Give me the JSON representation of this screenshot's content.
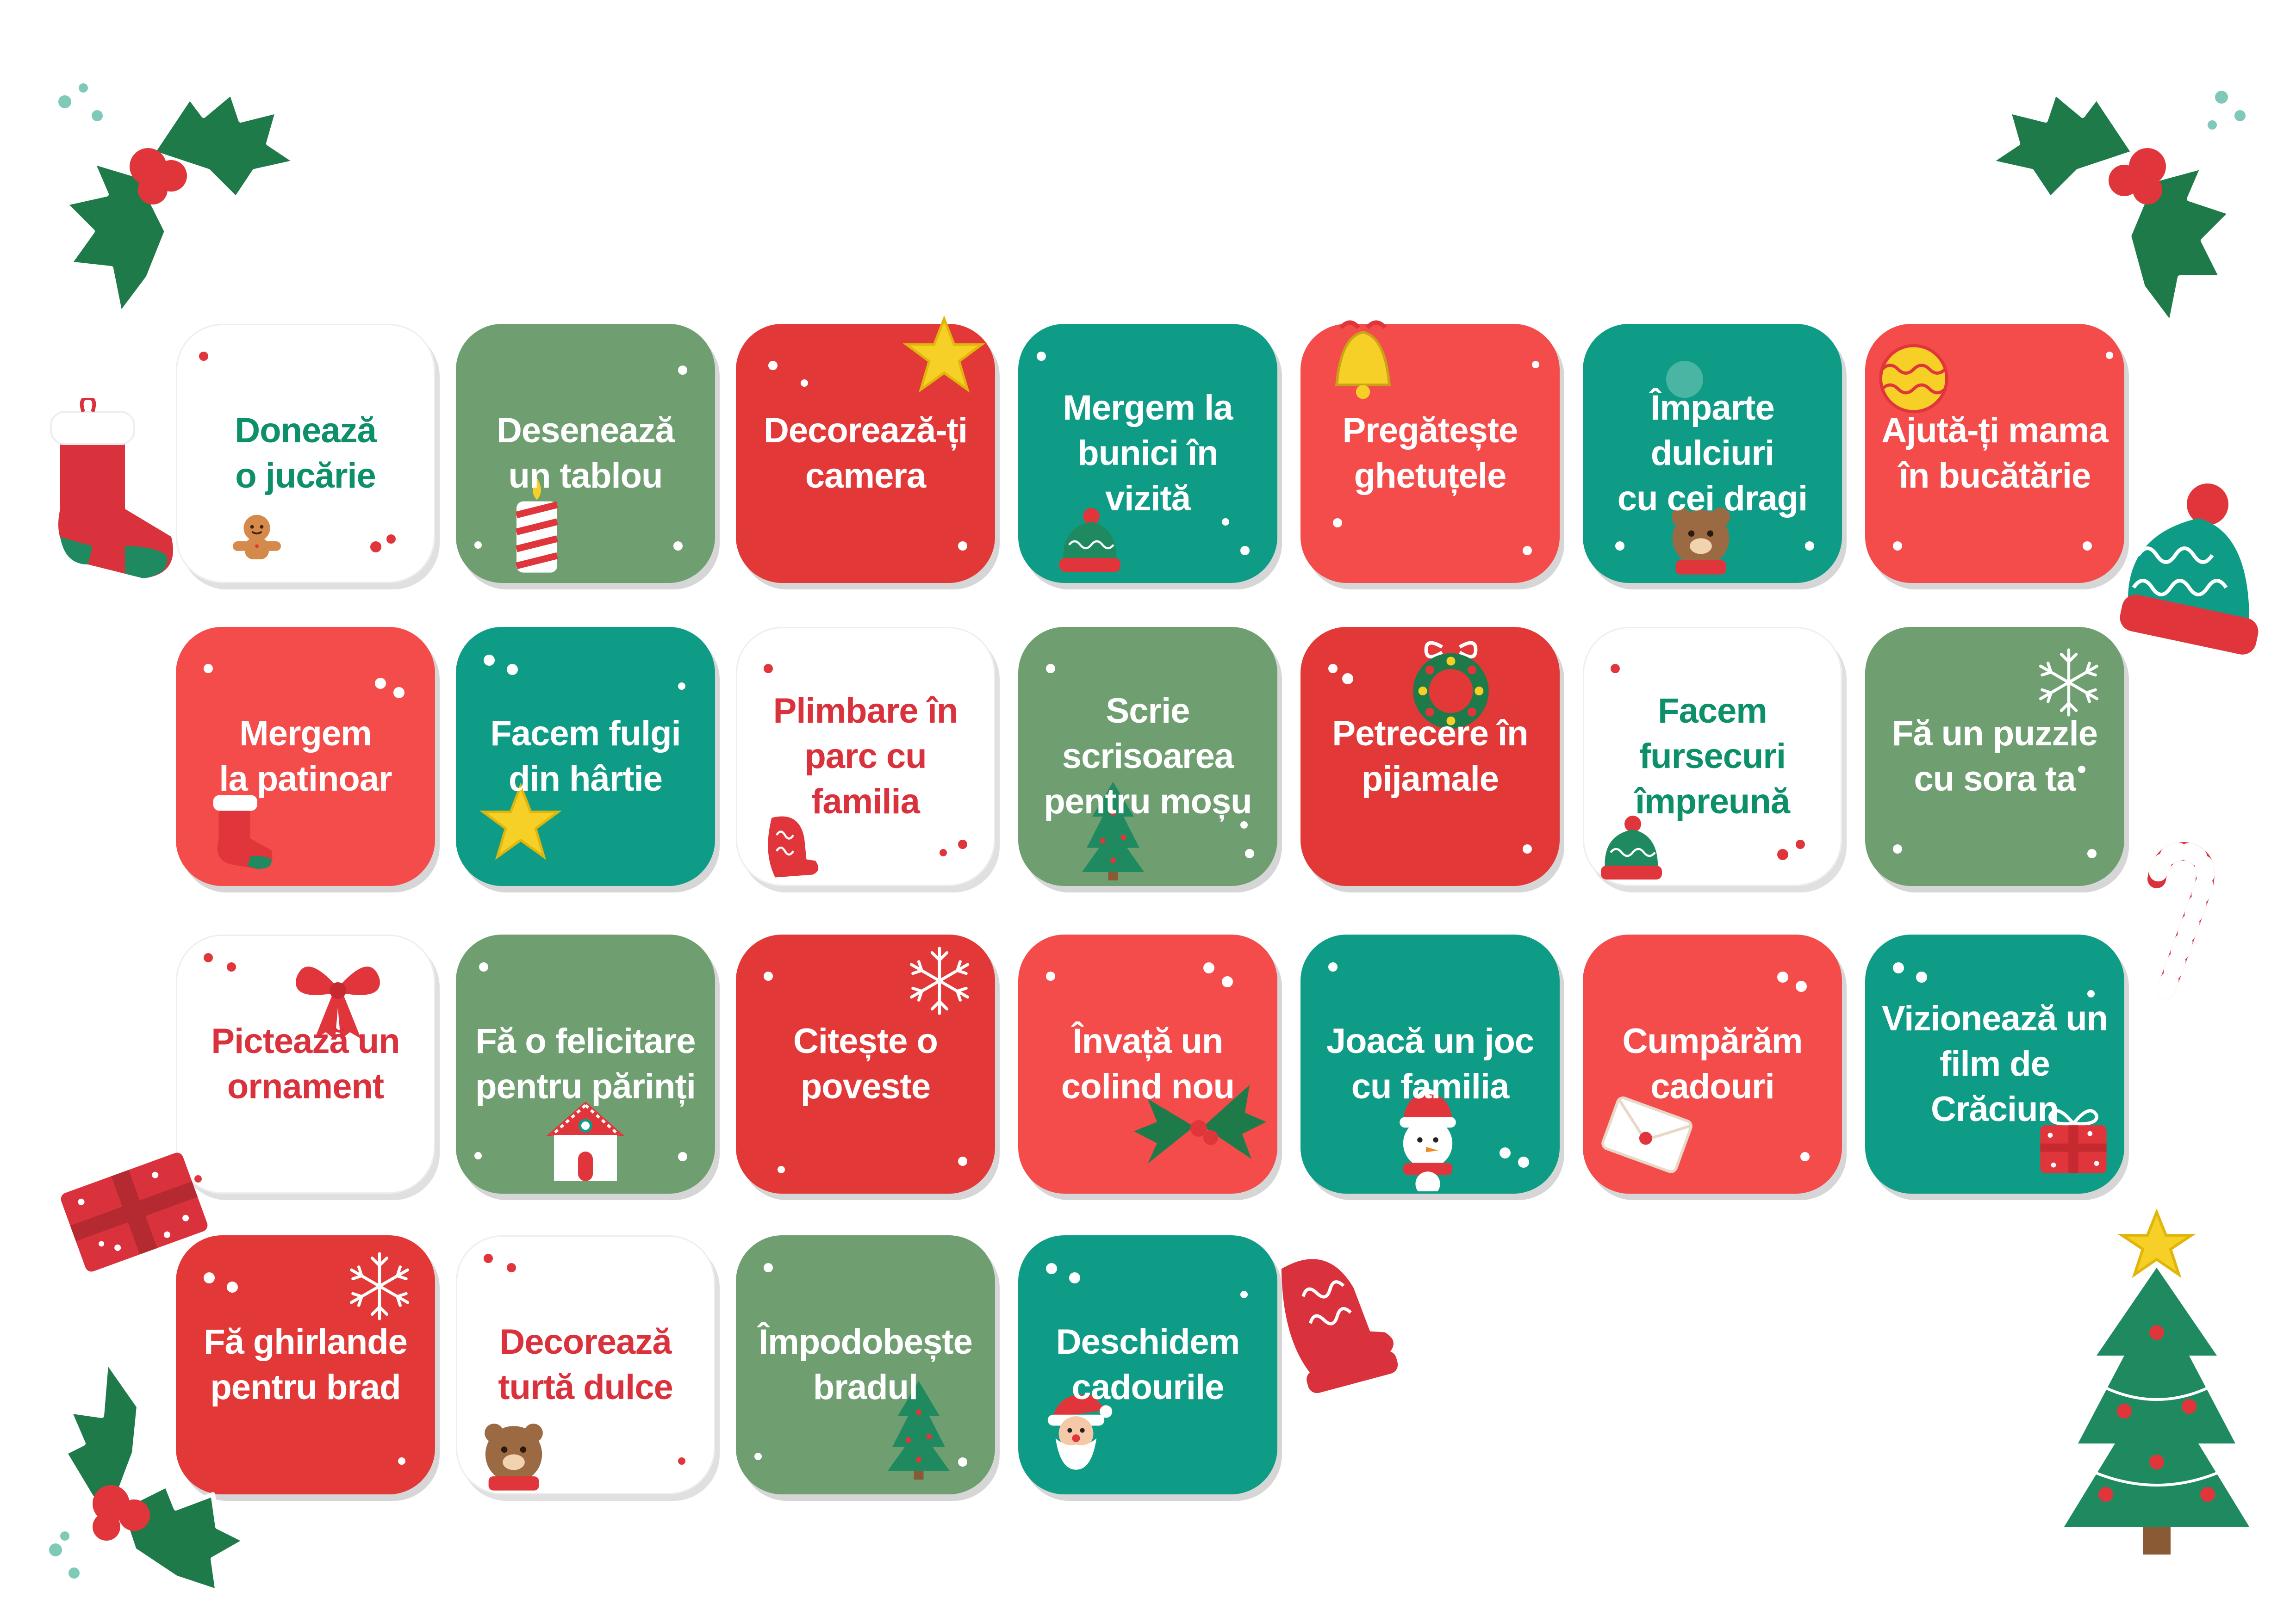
{
  "colors": {
    "red": "#e33838",
    "coral": "#f44b4b",
    "teal": "#0f9c86",
    "sage": "#6f9f71",
    "white": "#ffffff",
    "text_green": "#0d8f69",
    "text_red": "#d9323c",
    "holly": "#1f7a4a",
    "berry": "#e0363b"
  },
  "cards": [
    {
      "label": "Donează\no jucărie",
      "bg": "white",
      "text_color": "text_green",
      "icon": "gingerbread-icon"
    },
    {
      "label": "Desenează\nun tablou",
      "bg": "sage",
      "text_color": "white",
      "icon": "candle-icon"
    },
    {
      "label": "Decorează-ți\ncamera",
      "bg": "red",
      "text_color": "white",
      "icon": "star-icon"
    },
    {
      "label": "Mergem la\nbunici în vizită",
      "bg": "teal",
      "text_color": "white",
      "icon": "winter-hat-icon"
    },
    {
      "label": "Pregătește\nghetuțele",
      "bg": "coral",
      "text_color": "white",
      "icon": "bell-icon"
    },
    {
      "label": "Împarte dulciuri\ncu cei dragi",
      "bg": "teal",
      "text_color": "white",
      "icon": "bear-icon"
    },
    {
      "label": "Ajută-ți mama\nîn bucătărie",
      "bg": "coral",
      "text_color": "white",
      "icon": "ornament-ball-icon"
    },
    {
      "label": "Mergem\nla patinoar",
      "bg": "coral",
      "text_color": "white",
      "icon": "stocking-icon"
    },
    {
      "label": "Facem fulgi\ndin hârtie",
      "bg": "teal",
      "text_color": "white",
      "icon": "star-icon"
    },
    {
      "label": "Plimbare în\nparc cu familia",
      "bg": "white",
      "text_color": "text_red",
      "icon": "mitten-icon"
    },
    {
      "label": "Scrie scrisoarea\npentru moșu",
      "bg": "sage",
      "text_color": "white",
      "icon": "tree-icon"
    },
    {
      "label": "Petrecere în\npijamale",
      "bg": "red",
      "text_color": "white",
      "icon": "wreath-icon"
    },
    {
      "label": "Facem fursecuri\nîmpreună",
      "bg": "white",
      "text_color": "text_green",
      "icon": "winter-hat-icon"
    },
    {
      "label": "Fă un puzzle\ncu sora ta",
      "bg": "sage",
      "text_color": "white",
      "icon": "snowflake-icon"
    },
    {
      "label": "Pictează un\nornament",
      "bg": "white",
      "text_color": "text_red",
      "icon": "bow-icon"
    },
    {
      "label": "Fă o felicitare\npentru părinți",
      "bg": "sage",
      "text_color": "white",
      "icon": "house-icon"
    },
    {
      "label": "Citește o\npoveste",
      "bg": "red",
      "text_color": "white",
      "icon": "snowflake-icon"
    },
    {
      "label": "Învață un\ncolind nou",
      "bg": "coral",
      "text_color": "white",
      "icon": "holly-icon"
    },
    {
      "label": "Joacă un joc\ncu familia",
      "bg": "teal",
      "text_color": "white",
      "icon": "snowman-icon"
    },
    {
      "label": "Cumpărăm\ncadouri",
      "bg": "coral",
      "text_color": "white",
      "icon": "envelope-icon"
    },
    {
      "label": "Vizionează un\nfilm de Crăciun",
      "bg": "teal",
      "text_color": "white",
      "icon": "gift-icon"
    },
    {
      "label": "Fă ghirlande\npentru brad",
      "bg": "red",
      "text_color": "white",
      "icon": "snowflake-icon"
    },
    {
      "label": "Decorează\nturtă dulce",
      "bg": "white",
      "text_color": "text_red",
      "icon": "bear-icon"
    },
    {
      "label": "Împodobește\nbradul",
      "bg": "sage",
      "text_color": "white",
      "icon": "tree-icon"
    },
    {
      "label": "Deschidem\ncadourile",
      "bg": "teal",
      "text_color": "white",
      "icon": "santa-icon"
    }
  ]
}
